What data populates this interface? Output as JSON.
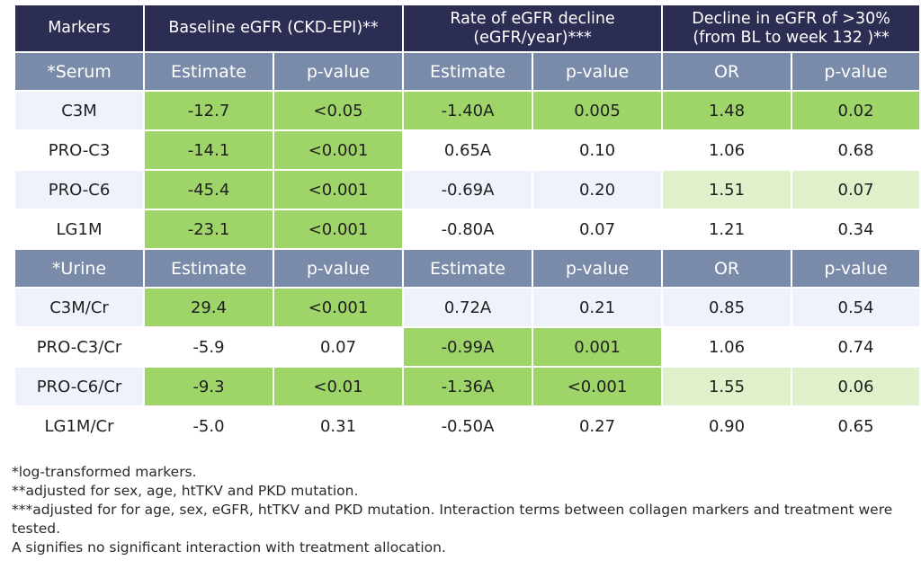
{
  "header": {
    "markers": "Markers",
    "baseline": "Baseline eGFR (CKD-EPI)**",
    "rate_line1": "Rate of eGFR decline",
    "rate_line2": "(eGFR/year)***",
    "decline_line1": "Decline in eGFR of >30%",
    "decline_line2": "(from BL to week 132 )**"
  },
  "serum_sub": [
    "*Serum",
    "Estimate",
    "p-value",
    "Estimate",
    "p-value",
    "OR",
    "p-value"
  ],
  "urine_sub": [
    "*Urine",
    "Estimate",
    "p-value",
    "Estimate",
    "p-value",
    "OR",
    "p-value"
  ],
  "serum_rows": [
    {
      "cells": [
        "C3M",
        "-12.7",
        "<0.05",
        "-1.40A",
        "0.005",
        "1.48",
        "0.02"
      ]
    },
    {
      "cells": [
        "PRO-C3",
        "-14.1",
        "<0.001",
        "0.65A",
        "0.10",
        "1.06",
        "0.68"
      ]
    },
    {
      "cells": [
        "PRO-C6",
        "-45.4",
        "<0.001",
        "-0.69A",
        "0.20",
        "1.51",
        "0.07"
      ]
    },
    {
      "cells": [
        "LG1M",
        "-23.1",
        "<0.001",
        "-0.80A",
        "0.07",
        "1.21",
        "0.34"
      ]
    }
  ],
  "urine_rows": [
    {
      "cells": [
        "C3M/Cr",
        "29.4",
        "<0.001",
        "0.72A",
        "0.21",
        "0.85",
        "0.54"
      ]
    },
    {
      "cells": [
        "PRO-C3/Cr",
        "-5.9",
        "0.07",
        "-0.99A",
        "0.001",
        "1.06",
        "0.74"
      ]
    },
    {
      "cells": [
        "PRO-C6/Cr",
        "-9.3",
        "<0.01",
        "-1.36A",
        "<0.001",
        "1.55",
        "0.06"
      ]
    },
    {
      "cells": [
        "LG1M/Cr",
        "-5.0",
        "0.31",
        "-0.50A",
        "0.27",
        "0.90",
        "0.65"
      ]
    }
  ],
  "colors": {
    "header_bg": "#2b2d52",
    "subheader_bg": "#7a8aa9",
    "significant": "#9ed468",
    "borderline": "#dff0cb",
    "row_alt": "#edf2fb"
  },
  "footnotes": [
    "*log-transformed markers.",
    "**adjusted for sex, age, htTKV and PKD mutation.",
    "***adjusted for for age, sex, eGFR, htTKV and PKD mutation. Interaction terms between collagen markers and treatment were tested.",
    "A signifies no significant interaction with treatment allocation."
  ]
}
